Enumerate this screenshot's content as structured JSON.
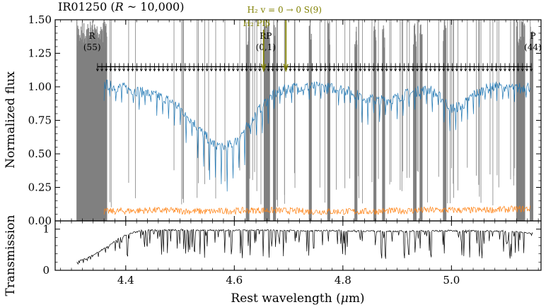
{
  "colors": {
    "flux": "#1f77b4",
    "error": "#ff7f0e",
    "masked": "#808080",
    "h2_line": "#808000",
    "markers": "#000000",
    "transmission": "#000000"
  },
  "chart_data": [
    {
      "type": "line",
      "panel": "top",
      "title": "IR01250 (R ~ 10,000)",
      "title_parts": {
        "name": "IR01250 (",
        "R": "R",
        "sim": " ~ 10,000)"
      },
      "ylabel": "Normalized flux",
      "xlim": [
        4.27,
        5.165
      ],
      "ylim": [
        0.0,
        1.5
      ],
      "yticks": [
        0.0,
        0.25,
        0.5,
        0.75,
        1.0,
        1.25,
        1.5
      ],
      "ytick_labels": [
        "0.00",
        "0.25",
        "0.50",
        "0.75",
        "1.00",
        "1.25",
        "1.50"
      ],
      "xticks": [
        4.4,
        4.6,
        4.8,
        5.0
      ],
      "grid": false,
      "series": [
        {
          "role": "flux",
          "x": [
            4.36,
            4.38,
            4.4,
            4.42,
            4.44,
            4.46,
            4.48,
            4.5,
            4.52,
            4.54,
            4.56,
            4.58,
            4.6,
            4.62,
            4.64,
            4.66,
            4.68,
            4.7,
            4.72,
            4.74,
            4.76,
            4.78,
            4.8,
            4.82,
            4.84,
            4.86,
            4.88,
            4.9,
            4.92,
            4.94,
            4.96,
            4.98,
            5.0,
            5.02,
            5.04,
            5.06,
            5.08,
            5.1,
            5.12,
            5.14
          ],
          "y": [
            1.02,
            1.0,
            0.99,
            0.97,
            0.95,
            0.93,
            0.9,
            0.84,
            0.76,
            0.66,
            0.58,
            0.55,
            0.58,
            0.68,
            0.8,
            0.9,
            0.96,
            0.99,
            1.0,
            1.0,
            1.0,
            0.99,
            0.98,
            0.95,
            0.92,
            0.9,
            0.9,
            0.92,
            0.95,
            0.97,
            0.98,
            0.92,
            0.84,
            0.86,
            0.94,
            0.98,
            1.0,
            1.0,
            0.99,
            1.0
          ]
        },
        {
          "role": "error",
          "x": [
            4.36,
            4.45,
            4.55,
            4.65,
            4.75,
            4.85,
            4.95,
            5.05,
            5.14
          ],
          "y": [
            0.07,
            0.08,
            0.07,
            0.08,
            0.07,
            0.07,
            0.08,
            0.08,
            0.09
          ]
        }
      ],
      "masked_regions": [
        [
          4.31,
          4.365
        ],
        [
          4.622,
          4.627
        ],
        [
          4.655,
          4.665
        ],
        [
          4.672,
          4.676
        ],
        [
          4.738,
          4.742
        ],
        [
          4.772,
          4.776
        ],
        [
          4.822,
          4.826
        ],
        [
          4.857,
          4.861
        ],
        [
          4.873,
          4.877
        ],
        [
          4.93,
          4.935
        ],
        [
          4.942,
          4.946
        ],
        [
          4.985,
          4.99
        ],
        [
          5.12,
          5.135
        ],
        [
          5.145,
          5.15
        ]
      ],
      "line_markers": {
        "x_start": 4.348,
        "x_end": 5.147,
        "y": 1.15,
        "count": 100
      },
      "branch_labels": [
        {
          "name": "R",
          "index": "(55)",
          "x": 4.338
        },
        {
          "name": "RP",
          "index": "(0,1)",
          "x": 4.658
        },
        {
          "name": "P",
          "index": "(44)",
          "x": 5.15
        }
      ],
      "h2_annotations": {
        "label1": "H₂ v = 0 → 0 S(9)",
        "label2": "H₂ Pfβ",
        "x_s9": 4.695,
        "x_pfb": 4.654
      }
    },
    {
      "type": "line",
      "panel": "bottom",
      "ylabel": "Transmission",
      "xlabel": "Rest wavelength (μm)",
      "xlabel_parts": {
        "text": "Rest wavelength (",
        "mu": "μ",
        "unit": "m)"
      },
      "xlim": [
        4.27,
        5.165
      ],
      "ylim": [
        0.0,
        1.2
      ],
      "yticks": [
        0,
        1
      ],
      "ytick_labels": [
        "0",
        "1"
      ],
      "xticks": [
        4.4,
        4.6,
        4.8,
        5.0
      ],
      "xtick_labels": [
        "4.4",
        "4.6",
        "4.8",
        "5.0"
      ],
      "series": [
        {
          "role": "transmission",
          "x": [
            4.31,
            4.33,
            4.35,
            4.37,
            4.39,
            4.41,
            4.43,
            4.5,
            4.6,
            4.7,
            4.8,
            4.9,
            5.0,
            5.1,
            5.15
          ],
          "y": [
            0.2,
            0.3,
            0.45,
            0.6,
            0.8,
            0.9,
            0.97,
            0.98,
            0.97,
            0.97,
            0.96,
            0.95,
            0.96,
            0.95,
            0.9
          ]
        }
      ]
    }
  ]
}
